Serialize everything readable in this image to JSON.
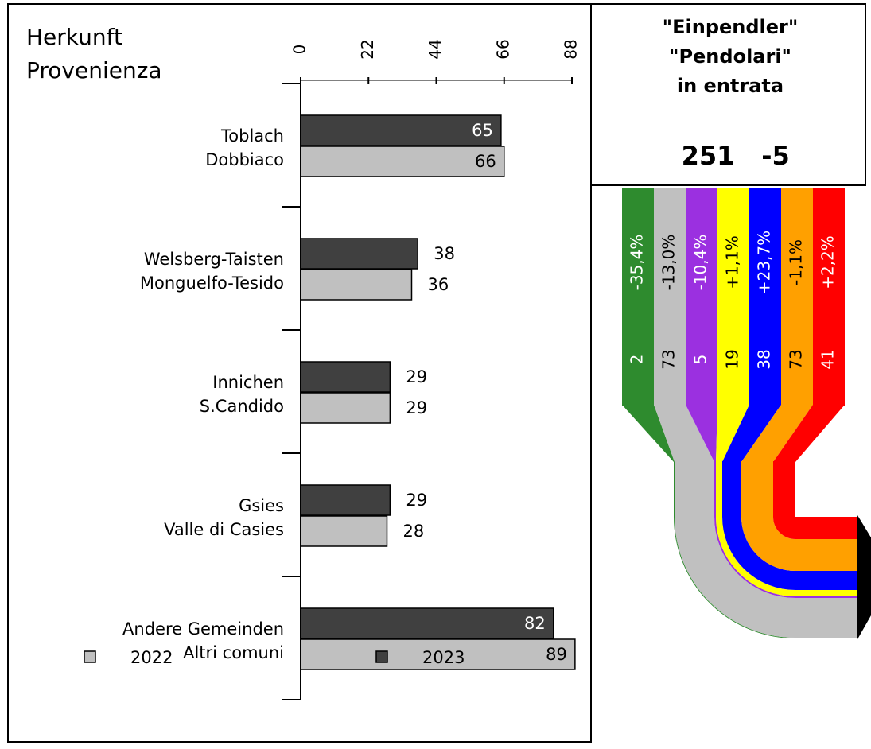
{
  "chart_data": {
    "type": "hbar",
    "title": [
      "Herkunft",
      "Provenienza"
    ],
    "categories": [
      [
        "Toblach",
        "Dobbiaco"
      ],
      [
        "Welsberg-Taisten",
        "Monguelfo-Tesido"
      ],
      [
        "Innichen",
        "S.Candido"
      ],
      [
        "Gsies",
        "Valle di Casies"
      ],
      [
        "Andere Gemeinden",
        "Altri comuni"
      ]
    ],
    "series": [
      {
        "name": "2023",
        "color": "#404040",
        "label_color": "#ffffff",
        "values": [
          65,
          38,
          29,
          29,
          82
        ]
      },
      {
        "name": "2022",
        "color": "#c0c0c0",
        "label_color": "#000000",
        "values": [
          66,
          36,
          29,
          28,
          89
        ]
      }
    ],
    "xlim": [
      0,
      88
    ],
    "xticks": [
      0,
      22,
      44,
      66,
      88
    ]
  },
  "flow": {
    "title": [
      "\"Einpendler\"",
      "\"Pendolari\"",
      "in entrata"
    ],
    "total": 251,
    "change": -5,
    "streams": [
      {
        "color": "#2e8b2e",
        "text_color": "#ffffff",
        "change": "-35,4%",
        "value": 2
      },
      {
        "color": "#c0c0c0",
        "text_color": "#000000",
        "change": "-13,0%",
        "value": 73
      },
      {
        "color": "#9b30e0",
        "text_color": "#ffffff",
        "change": "-10,4%",
        "value": 5
      },
      {
        "color": "#ffff00",
        "text_color": "#000000",
        "change": "+1,1%",
        "value": 19
      },
      {
        "color": "#0000ff",
        "text_color": "#ffffff",
        "change": "+23,7%",
        "value": 38
      },
      {
        "color": "#ffa000",
        "text_color": "#000000",
        "change": "-1,1%",
        "value": 73
      },
      {
        "color": "#ff0000",
        "text_color": "#ffffff",
        "change": "+2,2%",
        "value": 41
      }
    ]
  }
}
